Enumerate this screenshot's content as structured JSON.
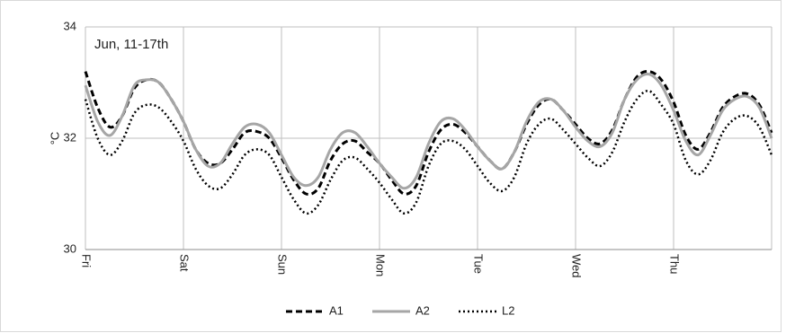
{
  "chart_data": {
    "type": "line",
    "annotation": "Jun, 11-17th",
    "y_label": "°C",
    "x": [
      0,
      0.125,
      0.25,
      0.375,
      0.5,
      0.625,
      0.75,
      0.875,
      1,
      1.125,
      1.25,
      1.375,
      1.5,
      1.625,
      1.75,
      1.875,
      2,
      2.125,
      2.25,
      2.375,
      2.5,
      2.625,
      2.75,
      2.875,
      3,
      3.125,
      3.25,
      3.375,
      3.5,
      3.625,
      3.75,
      3.875,
      4,
      4.125,
      4.25,
      4.375,
      4.5,
      4.625,
      4.75,
      4.875,
      5,
      5.125,
      5.25,
      5.375,
      5.5,
      5.625,
      5.75,
      5.875,
      6,
      6.125,
      6.25,
      6.375,
      6.5,
      6.625,
      6.75,
      6.875,
      7
    ],
    "series": [
      {
        "name": "A1",
        "color": "#000000",
        "dash": "dashed",
        "values": [
          33.2,
          32.55,
          32.2,
          32.4,
          32.9,
          33.05,
          33.0,
          32.7,
          32.3,
          31.8,
          31.55,
          31.55,
          31.8,
          32.1,
          32.12,
          32.0,
          31.65,
          31.25,
          31.0,
          31.1,
          31.6,
          31.9,
          31.95,
          31.75,
          31.55,
          31.25,
          31.0,
          31.15,
          31.75,
          32.15,
          32.25,
          32.1,
          31.85,
          31.6,
          31.45,
          31.75,
          32.25,
          32.6,
          32.7,
          32.5,
          32.25,
          32.0,
          31.9,
          32.15,
          32.7,
          33.1,
          33.2,
          33.05,
          32.65,
          32.05,
          31.8,
          32.1,
          32.55,
          32.75,
          32.8,
          32.6,
          32.1
        ]
      },
      {
        "name": "A2",
        "color": "#a6a6a6",
        "dash": "solid",
        "values": [
          32.95,
          32.3,
          32.05,
          32.4,
          32.95,
          33.05,
          33.0,
          32.7,
          32.3,
          31.8,
          31.5,
          31.55,
          31.9,
          32.2,
          32.25,
          32.1,
          31.7,
          31.3,
          31.15,
          31.3,
          31.8,
          32.1,
          32.1,
          31.85,
          31.55,
          31.3,
          31.1,
          31.3,
          31.9,
          32.3,
          32.35,
          32.15,
          31.85,
          31.6,
          31.45,
          31.75,
          32.3,
          32.65,
          32.7,
          32.5,
          32.2,
          31.95,
          31.85,
          32.1,
          32.7,
          33.05,
          33.15,
          32.95,
          32.5,
          31.95,
          31.7,
          32.05,
          32.5,
          32.7,
          32.75,
          32.55,
          32.0
        ]
      },
      {
        "name": "L2",
        "color": "#000000",
        "dash": "dotted",
        "values": [
          32.7,
          32.0,
          31.7,
          31.95,
          32.45,
          32.6,
          32.55,
          32.3,
          31.95,
          31.45,
          31.15,
          31.1,
          31.35,
          31.7,
          31.8,
          31.7,
          31.3,
          30.9,
          30.65,
          30.8,
          31.25,
          31.6,
          31.65,
          31.45,
          31.2,
          30.9,
          30.65,
          30.85,
          31.5,
          31.9,
          31.95,
          31.8,
          31.5,
          31.2,
          31.05,
          31.3,
          31.9,
          32.25,
          32.35,
          32.15,
          31.9,
          31.65,
          31.5,
          31.75,
          32.3,
          32.7,
          32.85,
          32.6,
          32.25,
          31.6,
          31.35,
          31.6,
          32.1,
          32.35,
          32.4,
          32.2,
          31.7
        ]
      }
    ],
    "xlim": [
      0,
      7
    ],
    "xticks": [
      {
        "value": 0,
        "label": "Fri"
      },
      {
        "value": 1,
        "label": "Sat"
      },
      {
        "value": 2,
        "label": "Sun"
      },
      {
        "value": 3,
        "label": "Mon"
      },
      {
        "value": 4,
        "label": "Tue"
      },
      {
        "value": 5,
        "label": "Wed"
      },
      {
        "value": 6,
        "label": "Thu"
      },
      7
    ],
    "ylim": [
      30,
      34
    ],
    "yticks": [
      30,
      32,
      34
    ],
    "grid": true,
    "legend": "bottom"
  }
}
